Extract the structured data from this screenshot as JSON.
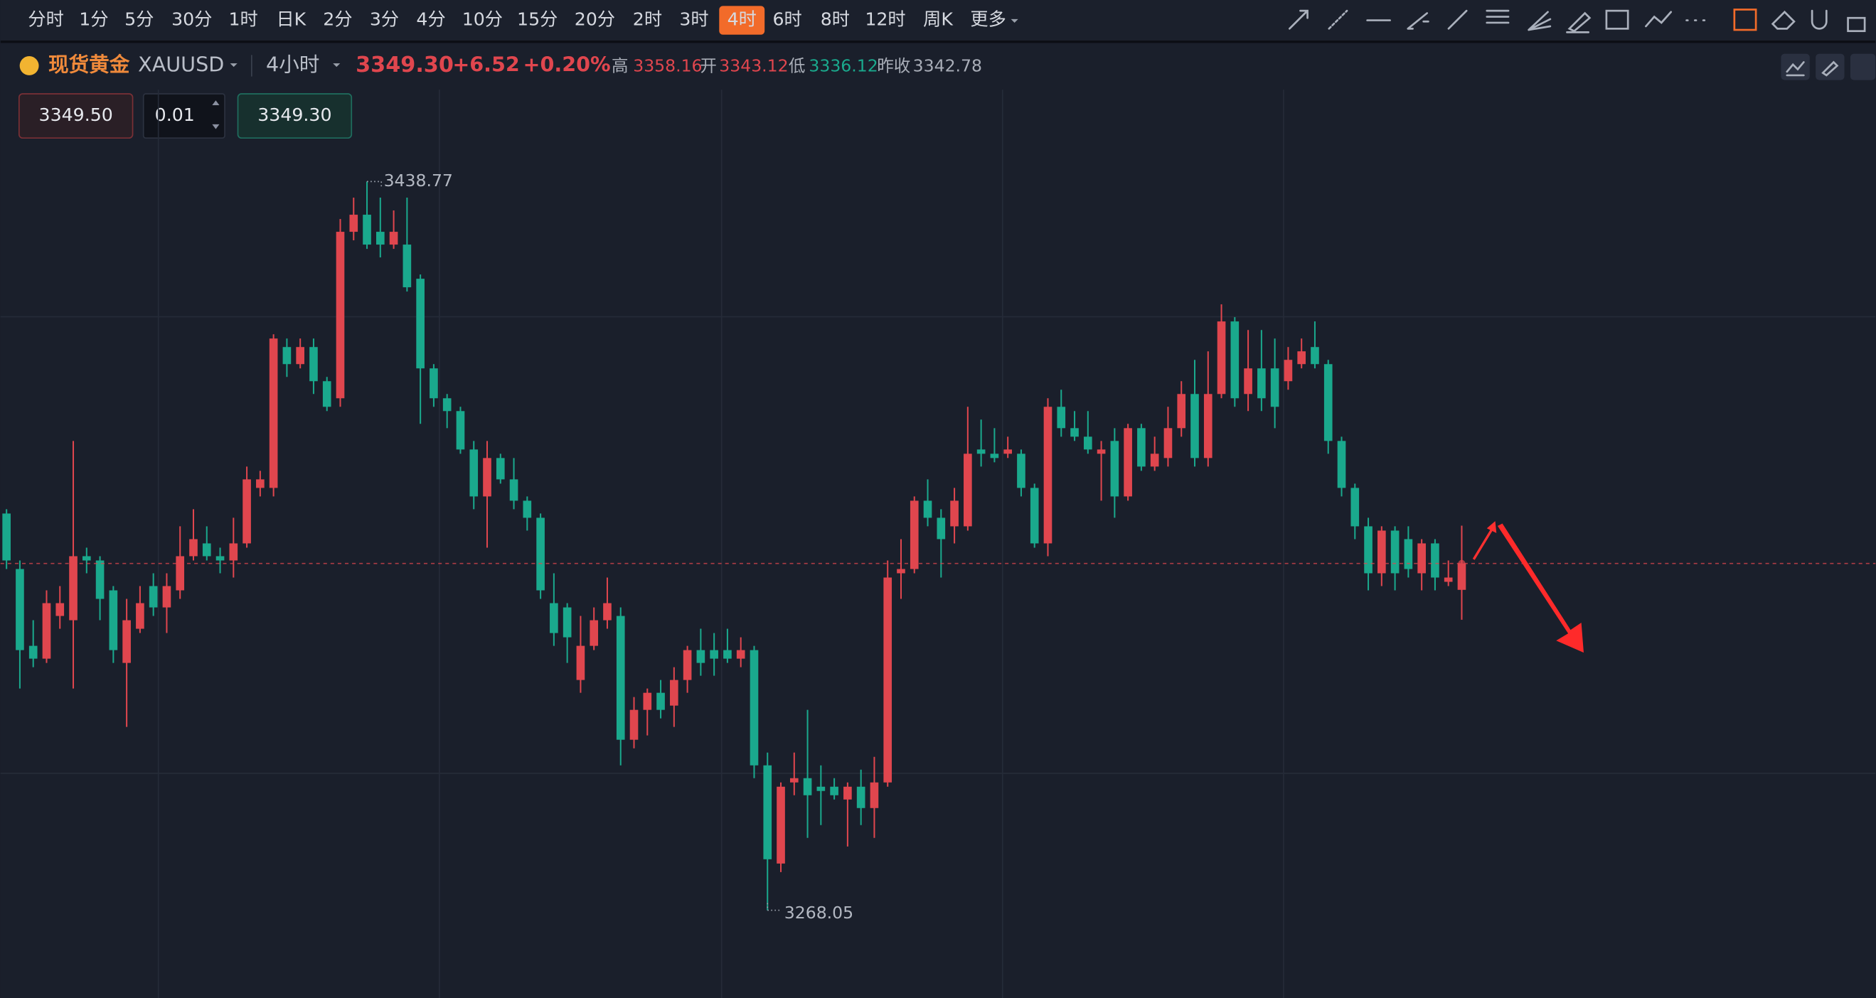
{
  "toolbar": {
    "intervals": [
      {
        "label": "分时"
      },
      {
        "label": "1分"
      },
      {
        "label": "5分"
      },
      {
        "label": "30分"
      },
      {
        "label": "1时"
      },
      {
        "label": "日K"
      },
      {
        "label": "2分"
      },
      {
        "label": "3分"
      },
      {
        "label": "4分"
      },
      {
        "label": "10分"
      },
      {
        "label": "15分"
      },
      {
        "label": "20分"
      },
      {
        "label": "2时"
      },
      {
        "label": "3时"
      },
      {
        "label": "4时",
        "active": true
      },
      {
        "label": "6时"
      },
      {
        "label": "8时"
      },
      {
        "label": "12时"
      },
      {
        "label": "周K"
      },
      {
        "label": "更多"
      }
    ]
  },
  "header": {
    "name": "现货黄金",
    "symbol": "XAUUSD",
    "period": "4小时",
    "price": "3349.30",
    "change": "+6.52",
    "change_pct": "+0.20%",
    "high_label": "高",
    "high": "3358.16",
    "open_label": "开",
    "open": "3343.12",
    "low_label": "低",
    "low": "3336.12",
    "prev_close_label": "昨收",
    "prev_close": "3342.78"
  },
  "trade": {
    "ask": "3349.50",
    "quantity": "0.01",
    "bid": "3349.30"
  },
  "chart_data": {
    "type": "candlestick",
    "up_color": "#e0464e",
    "down_color": "#1aa98d",
    "ylim": [
      3247.5,
      3460.3
    ],
    "ohlc": [
      [
        3361,
        3362,
        3348,
        3350
      ],
      [
        3348,
        3350,
        3320,
        3329
      ],
      [
        3330,
        3336,
        3325,
        3327
      ],
      [
        3327,
        3343,
        3326,
        3340
      ],
      [
        3337,
        3344,
        3334,
        3340
      ],
      [
        3336,
        3378,
        3320,
        3351
      ],
      [
        3351,
        3353,
        3347,
        3350
      ],
      [
        3350,
        3351,
        3336,
        3341
      ],
      [
        3343,
        3344,
        3326,
        3329
      ],
      [
        3326,
        3341,
        3311,
        3336
      ],
      [
        3334,
        3344,
        3333,
        3340
      ],
      [
        3344,
        3347,
        3337,
        3339
      ],
      [
        3339,
        3347,
        3333,
        3344
      ],
      [
        3343,
        3358,
        3341,
        3351
      ],
      [
        3351,
        3362,
        3350,
        3355
      ],
      [
        3354,
        3358,
        3350,
        3351
      ],
      [
        3351,
        3353,
        3347,
        3350
      ],
      [
        3350,
        3360,
        3346,
        3354
      ],
      [
        3354,
        3372,
        3353,
        3369
      ],
      [
        3367,
        3371,
        3365,
        3369
      ],
      [
        3367,
        3403,
        3365,
        3402
      ],
      [
        3400,
        3402,
        3393,
        3396
      ],
      [
        3396,
        3402,
        3395,
        3400
      ],
      [
        3400,
        3402,
        3389,
        3392
      ],
      [
        3392,
        3393,
        3385,
        3386
      ],
      [
        3388,
        3430,
        3386,
        3427
      ],
      [
        3427,
        3435,
        3425,
        3431
      ],
      [
        3431,
        3438.77,
        3423,
        3424
      ],
      [
        3427,
        3435,
        3421,
        3424
      ],
      [
        3424,
        3432,
        3423,
        3427
      ],
      [
        3424,
        3435,
        3413,
        3414
      ],
      [
        3416,
        3417,
        3382,
        3395
      ],
      [
        3395,
        3396,
        3386,
        3388
      ],
      [
        3388,
        3389,
        3381,
        3385
      ],
      [
        3385,
        3386,
        3375,
        3376
      ],
      [
        3376,
        3378,
        3362,
        3365
      ],
      [
        3365,
        3378,
        3353,
        3374
      ],
      [
        3374,
        3375,
        3368,
        3369
      ],
      [
        3369,
        3374,
        3362,
        3364
      ],
      [
        3364,
        3365,
        3357,
        3360
      ],
      [
        3360,
        3361,
        3341,
        3343
      ],
      [
        3340,
        3347,
        3330,
        3333
      ],
      [
        3339,
        3340,
        3326,
        3332
      ],
      [
        3322,
        3337,
        3319,
        3330
      ],
      [
        3330,
        3339,
        3329,
        3336
      ],
      [
        3336,
        3346,
        3334,
        3340
      ],
      [
        3337,
        3339,
        3302,
        3308
      ],
      [
        3308,
        3318,
        3306,
        3315
      ],
      [
        3315,
        3320,
        3309,
        3319
      ],
      [
        3319,
        3322,
        3313,
        3315
      ],
      [
        3316,
        3325,
        3311,
        3322
      ],
      [
        3322,
        3330,
        3319,
        3329
      ],
      [
        3329,
        3334,
        3323,
        3326
      ],
      [
        3329,
        3333,
        3323,
        3327
      ],
      [
        3329,
        3334,
        3326,
        3327
      ],
      [
        3327,
        3332,
        3325,
        3329
      ],
      [
        3329,
        3330,
        3299,
        3302
      ],
      [
        3302,
        3305,
        3268.05,
        3280
      ],
      [
        3279,
        3298,
        3277,
        3297
      ],
      [
        3298,
        3305,
        3295,
        3299
      ],
      [
        3299,
        3315,
        3285,
        3295
      ],
      [
        3297,
        3302,
        3288,
        3296
      ],
      [
        3297,
        3299,
        3294,
        3295
      ],
      [
        3294,
        3298,
        3283,
        3297
      ],
      [
        3297,
        3301,
        3288,
        3292
      ],
      [
        3292,
        3304,
        3285,
        3298
      ],
      [
        3298,
        3350,
        3297,
        3346
      ],
      [
        3347,
        3355,
        3341,
        3348
      ],
      [
        3348,
        3365,
        3347,
        3364
      ],
      [
        3364,
        3369,
        3358,
        3360
      ],
      [
        3360,
        3362,
        3346,
        3355
      ],
      [
        3358,
        3367,
        3354,
        3364
      ],
      [
        3358,
        3386,
        3357,
        3375
      ],
      [
        3376,
        3383,
        3372,
        3375
      ],
      [
        3375,
        3381,
        3373,
        3374
      ],
      [
        3375,
        3379,
        3374,
        3376
      ],
      [
        3375,
        3376,
        3365,
        3367
      ],
      [
        3367,
        3368,
        3353,
        3354
      ],
      [
        3354,
        3388,
        3351,
        3386
      ],
      [
        3386,
        3390,
        3379,
        3381
      ],
      [
        3381,
        3385,
        3378,
        3379
      ],
      [
        3379,
        3385,
        3375,
        3376
      ],
      [
        3375,
        3378,
        3364,
        3376
      ],
      [
        3378,
        3381,
        3360,
        3365
      ],
      [
        3365,
        3382,
        3364,
        3381
      ],
      [
        3381,
        3382,
        3371,
        3372
      ],
      [
        3372,
        3379,
        3371,
        3375
      ],
      [
        3374,
        3386,
        3372,
        3381
      ],
      [
        3381,
        3392,
        3379,
        3389
      ],
      [
        3389,
        3397,
        3372,
        3374
      ],
      [
        3374,
        3399,
        3372,
        3389
      ],
      [
        3389,
        3410,
        3388,
        3406
      ],
      [
        3406,
        3407,
        3386,
        3388
      ],
      [
        3389,
        3404,
        3385,
        3395
      ],
      [
        3395,
        3404,
        3385,
        3388
      ],
      [
        3395,
        3402,
        3381,
        3386
      ],
      [
        3392,
        3400,
        3390,
        3397
      ],
      [
        3396,
        3402,
        3395,
        3399
      ],
      [
        3400,
        3406,
        3395,
        3396
      ],
      [
        3396,
        3397,
        3375,
        3378
      ],
      [
        3378,
        3379,
        3365,
        3367
      ],
      [
        3367,
        3368,
        3355,
        3358
      ],
      [
        3358,
        3360,
        3343,
        3347
      ],
      [
        3347,
        3358,
        3344,
        3357
      ],
      [
        3357,
        3358,
        3343,
        3347
      ],
      [
        3355,
        3358,
        3346,
        3348
      ],
      [
        3347,
        3355,
        3343,
        3354
      ],
      [
        3354,
        3355,
        3343,
        3346
      ],
      [
        3345,
        3350,
        3344,
        3346
      ],
      [
        3343.12,
        3358.16,
        3336.12,
        3349.3
      ]
    ]
  }
}
